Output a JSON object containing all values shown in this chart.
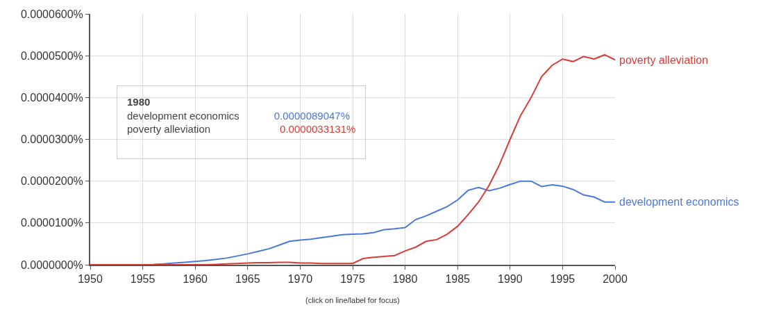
{
  "chart_data": {
    "type": "line",
    "x": [
      1950,
      1951,
      1952,
      1953,
      1954,
      1955,
      1956,
      1957,
      1958,
      1959,
      1960,
      1961,
      1962,
      1963,
      1964,
      1965,
      1966,
      1967,
      1968,
      1969,
      1970,
      1971,
      1972,
      1973,
      1974,
      1975,
      1976,
      1977,
      1978,
      1979,
      1980,
      1981,
      1982,
      1983,
      1984,
      1985,
      1986,
      1987,
      1988,
      1989,
      1990,
      1991,
      1992,
      1993,
      1994,
      1995,
      1996,
      1997,
      1998,
      1999,
      2000
    ],
    "series": [
      {
        "name": "poverty alleviation",
        "color": "#db3a34",
        "values": [
          0,
          0,
          0,
          0,
          0,
          0,
          0,
          0,
          0,
          0,
          0,
          0,
          1e-07,
          2e-07,
          3e-07,
          4e-07,
          5e-07,
          5e-07,
          6e-07,
          6e-07,
          4e-07,
          4e-07,
          3e-07,
          3e-07,
          3e-07,
          3e-07,
          1.5e-06,
          1.8e-06,
          2e-06,
          2.2e-06,
          3.3e-06,
          4.2e-06,
          5.6e-06,
          6e-06,
          7.3e-06,
          9.2e-06,
          1.2e-05,
          1.5e-05,
          1.9e-05,
          2.4e-05,
          3e-05,
          3.57e-05,
          4e-05,
          4.5e-05,
          4.77e-05,
          4.92e-05,
          4.86e-05,
          4.98e-05,
          4.92e-05,
          5.02e-05,
          4.9e-05
        ]
      },
      {
        "name": "development economics",
        "color": "#4a78d8",
        "values": [
          null,
          null,
          null,
          null,
          null,
          null,
          1e-07,
          2e-07,
          4e-07,
          6e-07,
          8e-07,
          1e-06,
          1.3e-06,
          1.6e-06,
          2.1e-06,
          2.6e-06,
          3.2e-06,
          3.8e-06,
          4.7e-06,
          5.6e-06,
          5.9e-06,
          6.1e-06,
          6.5e-06,
          6.8e-06,
          7.2e-06,
          7.3e-06,
          7.4e-06,
          7.7e-06,
          8.4e-06,
          8.6e-06,
          8.9e-06,
          1.08e-05,
          1.17e-05,
          1.28e-05,
          1.39e-05,
          1.55e-05,
          1.78e-05,
          1.85e-05,
          1.77e-05,
          1.83e-05,
          1.92e-05,
          2e-05,
          2e-05,
          1.87e-05,
          1.91e-05,
          1.88e-05,
          1.8e-05,
          1.67e-05,
          1.62e-05,
          1.5e-05,
          1.5e-05
        ]
      }
    ],
    "xlim": [
      1950,
      2000
    ],
    "xticks": [
      1950,
      1955,
      1960,
      1965,
      1970,
      1975,
      1980,
      1985,
      1990,
      1995,
      2000
    ],
    "ylim": [
      0,
      6e-05
    ],
    "yticks": [
      {
        "value": 0,
        "label": "0.0000000%"
      },
      {
        "value": 1e-05,
        "label": "0.0000100%"
      },
      {
        "value": 2e-05,
        "label": "0.0000200%"
      },
      {
        "value": 3e-05,
        "label": "0.0000300%"
      },
      {
        "value": 4e-05,
        "label": "0.0000400%"
      },
      {
        "value": 5e-05,
        "label": "0.0000500%"
      },
      {
        "value": 6e-05,
        "label": "0.0000600%"
      }
    ],
    "grid": true,
    "legend": false,
    "marker": "none",
    "line_style": "solid",
    "annotations": [
      "1980",
      "development economics",
      "poverty alleviation",
      "0.0000089047%",
      "0.0000033131%",
      "(click on line/label for focus)"
    ]
  }
}
